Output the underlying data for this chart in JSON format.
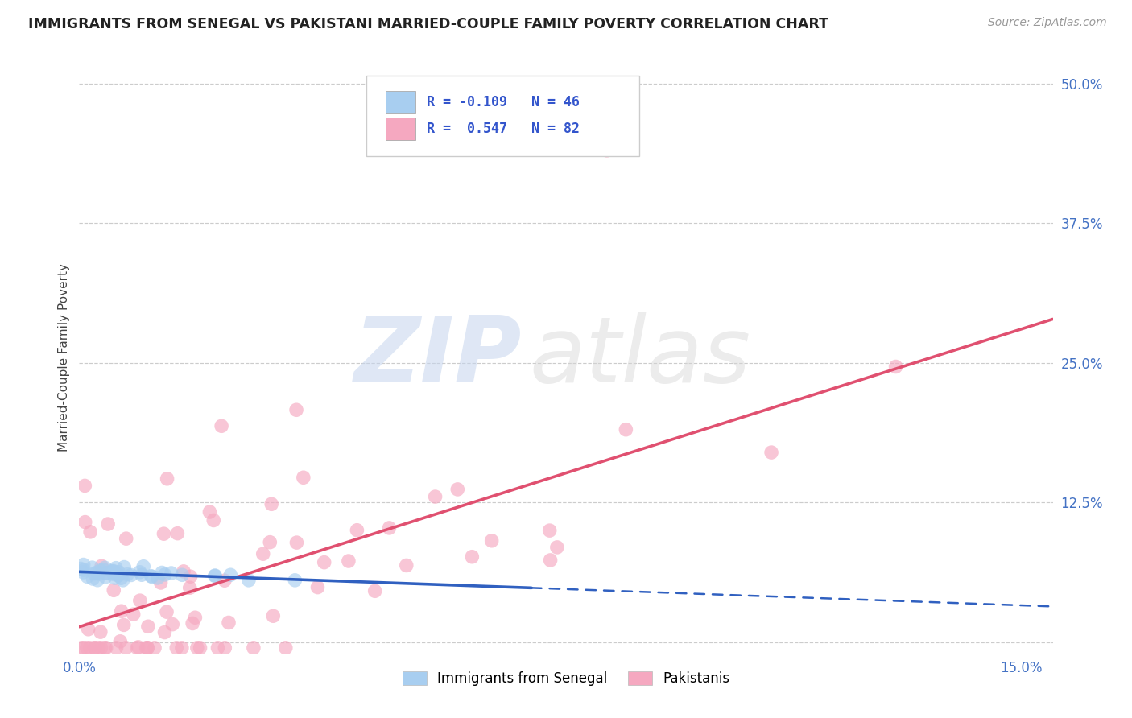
{
  "title": "IMMIGRANTS FROM SENEGAL VS PAKISTANI MARRIED-COUPLE FAMILY POVERTY CORRELATION CHART",
  "source": "Source: ZipAtlas.com",
  "ylabel": "Married-Couple Family Poverty",
  "xlim": [
    0.0,
    0.155
  ],
  "ylim": [
    -0.01,
    0.52
  ],
  "xtick_vals": [
    0.0,
    0.05,
    0.1,
    0.15
  ],
  "xtick_labels": [
    "0.0%",
    "",
    "",
    "15.0%"
  ],
  "ytick_vals": [
    0.0,
    0.125,
    0.25,
    0.375,
    0.5
  ],
  "ytick_labels_right": [
    "",
    "12.5%",
    "25.0%",
    "37.5%",
    "50.0%"
  ],
  "senegal_color": "#a8cef0",
  "pakistani_color": "#f5a8c0",
  "senegal_line_color": "#3060c0",
  "pakistani_line_color": "#e05070",
  "grid_color": "#cccccc",
  "background_color": "#ffffff",
  "tick_label_color": "#4472c4",
  "title_color": "#222222",
  "source_color": "#999999",
  "ylabel_color": "#444444",
  "legend_text_color": "#3355cc",
  "R_senegal": -0.109,
  "N_senegal": 46,
  "R_pakistani": 0.547,
  "N_pakistani": 82,
  "point_size": 160,
  "point_alpha": 0.65
}
